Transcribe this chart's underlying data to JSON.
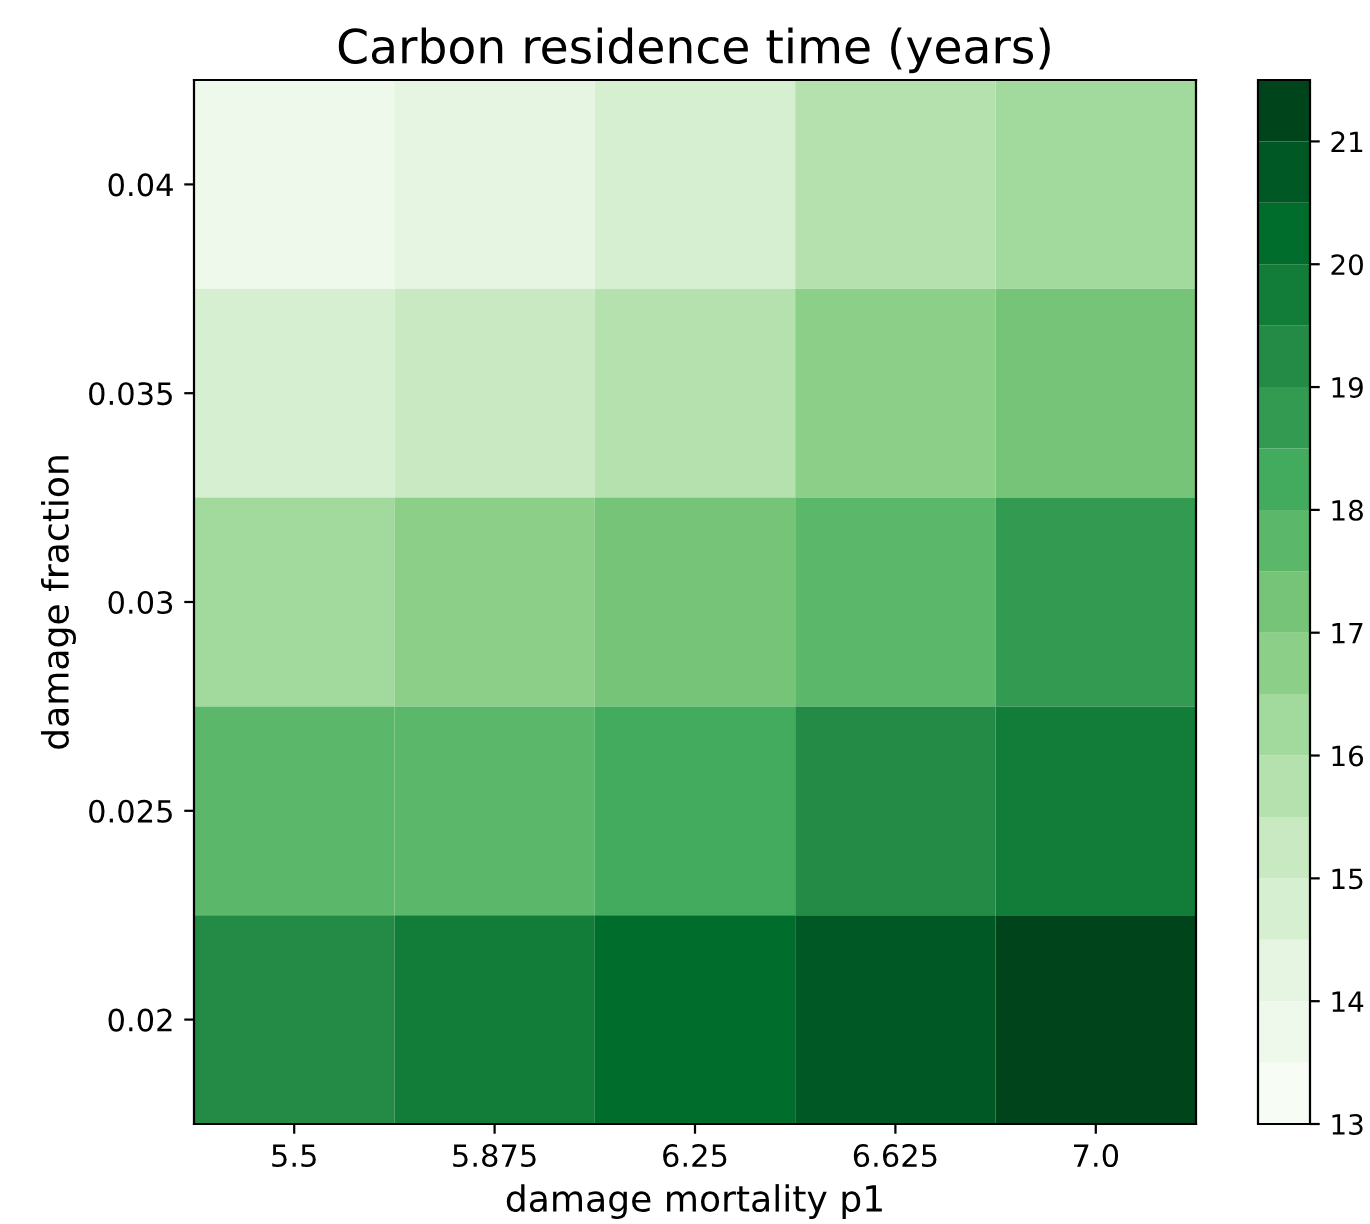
{
  "chart_data": {
    "type": "heatmap",
    "title": "Carbon residence time (years)",
    "xlabel": "damage mortality p1",
    "ylabel": "damage fraction",
    "categories": [
      "5.5",
      "5.875",
      "6.25",
      "6.625",
      "7.0"
    ],
    "y_categories": [
      "0.04",
      "0.035",
      "0.03",
      "0.025",
      "0.02"
    ],
    "cells": [
      [
        13.75,
        14.25,
        14.75,
        15.75,
        16.25
      ],
      [
        14.75,
        15.25,
        15.75,
        16.75,
        17.25
      ],
      [
        16.25,
        16.75,
        17.25,
        17.75,
        18.75
      ],
      [
        17.75,
        17.75,
        18.25,
        19.25,
        19.75
      ],
      [
        19.25,
        19.75,
        20.25,
        20.75,
        21.25
      ]
    ],
    "clim": [
      13,
      21.5
    ],
    "cticks": [
      13,
      14,
      15,
      16,
      17,
      18,
      19,
      20,
      21
    ]
  }
}
